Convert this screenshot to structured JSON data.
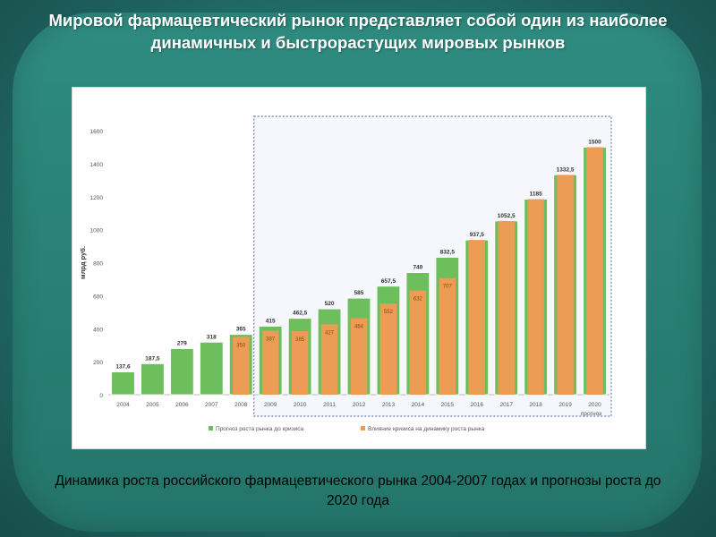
{
  "slide": {
    "title": "Мировой фармацевтический рынок представляет собой один из наиболее динамичных и быстрорастущих мировых рынков",
    "caption": "Динамика роста российского фармацевтического рынка 2004-2007 годах и прогнозы роста до 2020 года"
  },
  "colors": {
    "background": "#24736c",
    "green_bar": "#6cbf5c",
    "orange_bar": "#ec9c55",
    "forecast_border": "#7f8fbf"
  },
  "chart_data": {
    "type": "bar",
    "title": "",
    "ylabel": "млрд руб.",
    "xlabel": "",
    "x_note": "прогноз",
    "categories": [
      "2004",
      "2005",
      "2006",
      "2007",
      "2008",
      "2009",
      "2010",
      "2011",
      "2012",
      "2013",
      "2014",
      "2015",
      "2016",
      "2017",
      "2018",
      "2019",
      "2020"
    ],
    "ylim": [
      0,
      1600
    ],
    "yticks": [
      0,
      200,
      400,
      600,
      800,
      1000,
      1200,
      1400,
      1600
    ],
    "grid": false,
    "legend_position": "bottom",
    "forecast_region": [
      "2009",
      "2020"
    ],
    "series": [
      {
        "name": "Прогноз роста рынка до кризиса",
        "color": "#6cbf5c",
        "values": [
          137.6,
          187.5,
          279,
          318,
          365,
          415,
          462.5,
          520,
          585,
          657.5,
          740,
          832.5,
          937.5,
          1052.5,
          1185,
          1332.5,
          1500
        ],
        "labels": [
          "137,6",
          "187,5",
          "279",
          "318",
          "365",
          "415",
          "462,5",
          "520",
          "585",
          "657,5",
          "740",
          "832,5",
          "937,5",
          "1052,5",
          "1185",
          "1332,5",
          "1500"
        ]
      },
      {
        "name": "Влияние кризиса на динамику роста рынка",
        "color": "#ec9c55",
        "values": [
          null,
          null,
          null,
          null,
          350,
          387,
          385,
          427,
          464,
          552,
          632,
          707,
          937.5,
          1052.5,
          1185,
          1332.5,
          1500
        ],
        "labels": [
          "",
          "",
          "",
          "",
          "350",
          "387",
          "385",
          "427",
          "464",
          "552",
          "632",
          "707",
          "",
          "",
          "",
          "",
          ""
        ]
      }
    ]
  }
}
